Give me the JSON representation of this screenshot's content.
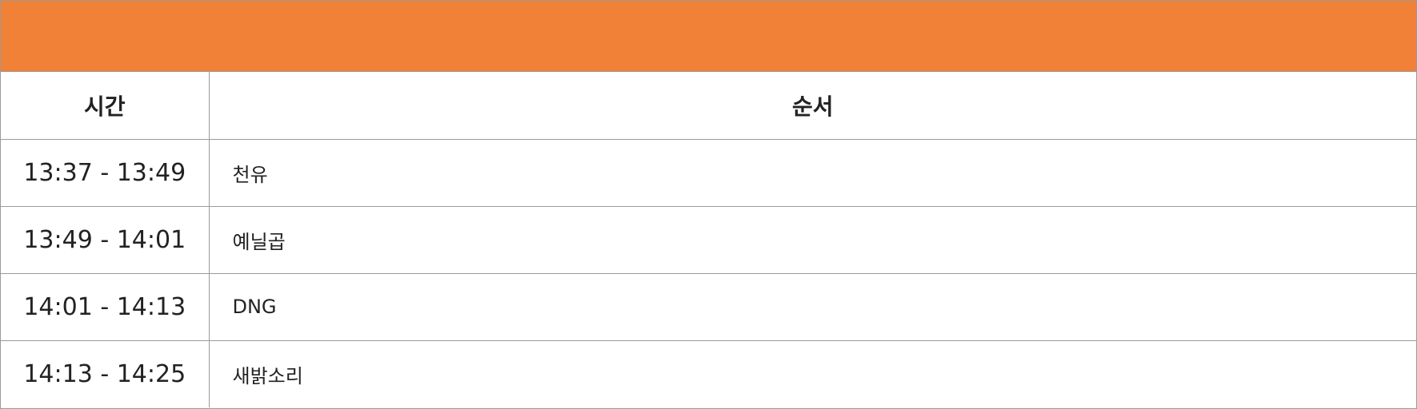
{
  "colors": {
    "header_bar": "#F08137",
    "border": "#9A9A9A",
    "text": "#222222"
  },
  "table": {
    "headers": {
      "time": "시간",
      "order": "순서"
    },
    "rows": [
      {
        "time": "13:37 - 13:49",
        "order": "천유"
      },
      {
        "time": "13:49 - 14:01",
        "order": "예닐곱"
      },
      {
        "time": "14:01 - 14:13",
        "order": "DNG"
      },
      {
        "time": "14:13 - 14:25",
        "order": "새밝소리"
      }
    ]
  }
}
